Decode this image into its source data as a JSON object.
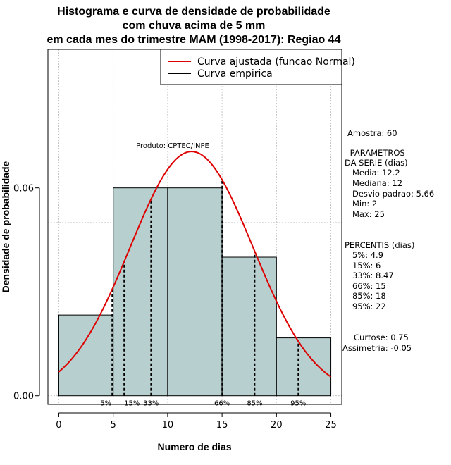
{
  "chart_data": {
    "type": "histogram",
    "title_lines": [
      "Histograma e curva de densidade de probabilidade",
      "com chuva acima de 5 mm",
      "em cada mes do trimestre MAM (1998-2017): Regiao 44"
    ],
    "xlabel": "Numero de dias",
    "ylabel": "Densidade de probabilidade",
    "xlim": [
      -1,
      26
    ],
    "ylim": [
      -0.0025,
      0.1
    ],
    "x_ticks": [
      0,
      5,
      10,
      15,
      20,
      25
    ],
    "x_tick_labels": [
      "0",
      "5",
      "10",
      "15",
      "20",
      "25"
    ],
    "y_ticks": [
      0,
      0.06
    ],
    "y_tick_labels": [
      "0.00",
      "0.06"
    ],
    "grid": true,
    "grid_x": [
      0,
      5,
      10,
      15,
      20,
      25
    ],
    "grid_y": [
      0,
      0.05,
      0.1
    ],
    "bins": [
      {
        "x0": 0,
        "x1": 5,
        "density": 0.0233
      },
      {
        "x0": 5,
        "x1": 10,
        "density": 0.06
      },
      {
        "x0": 10,
        "x1": 15,
        "density": 0.06
      },
      {
        "x0": 15,
        "x1": 20,
        "density": 0.04
      },
      {
        "x0": 20,
        "x1": 25,
        "density": 0.0167
      }
    ],
    "bar_color": "#b8cfcf",
    "curve": {
      "name": "Curva ajustada (funcao Normal)",
      "mean": 12.2,
      "sd": 5.66,
      "color": "#dd0000",
      "x_range": [
        0,
        25
      ]
    },
    "legend": {
      "position": "top-right",
      "entries": [
        {
          "label": "Curva ajustada (funcao Normal)",
          "color": "#dd0000"
        },
        {
          "label": "Curva empirica",
          "color": "#000000"
        }
      ]
    },
    "percentile_lines": [
      {
        "label": "5%",
        "x": 4.9
      },
      {
        "label": "15%",
        "x": 6
      },
      {
        "label": "33%",
        "x": 8.47
      },
      {
        "label": "66%",
        "x": 15
      },
      {
        "label": "85%",
        "x": 18
      },
      {
        "label": "95%",
        "x": 22
      }
    ],
    "annotation": {
      "text": "Produto: CPTEC/INPE",
      "x": 10.5,
      "y": 0.0825
    },
    "side_text": [
      "Amostra: 60",
      " PARAMETROS",
      "DA SERIE (dias)",
      "   Media: 12.2",
      "   Mediana: 12",
      "   Desvio padrao: 5.66",
      "   Min: 2",
      "   Max: 25",
      "PERCENTIS (dias)",
      "   5%: 4.9",
      "   15%: 6",
      "   33%: 8.47",
      "   66%: 15",
      "   85%: 18",
      "   95%: 22",
      "Curtose: 0.75",
      "Assimetria: -0.05"
    ]
  }
}
